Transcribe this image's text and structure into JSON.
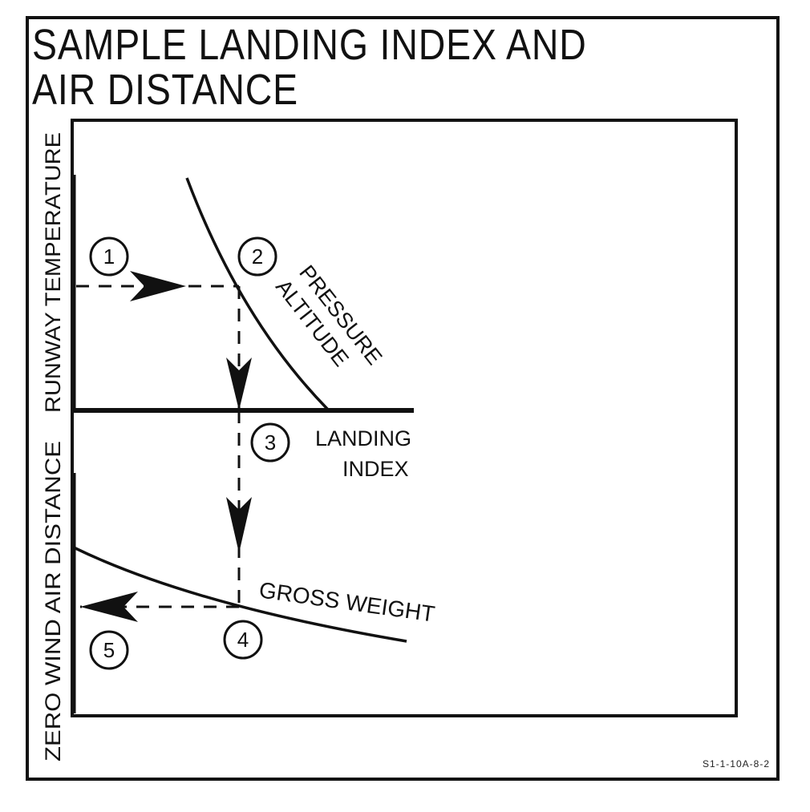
{
  "title": {
    "line1": "SAMPLE LANDING INDEX AND",
    "line2": "AIR DISTANCE"
  },
  "axes": {
    "upper_y_label": "RUNWAY TEMPERATURE",
    "lower_y_label": "ZERO WIND AIR DISTANCE"
  },
  "curves": {
    "pressure_altitude": "PRESSURE ALTITUDE",
    "pressure_altitude_line1": "PRESSURE",
    "pressure_altitude_line2": "ALTITUDE",
    "landing_index_line1": "LANDING",
    "landing_index_line2": "INDEX",
    "gross_weight": "GROSS WEIGHT"
  },
  "steps": [
    "1",
    "2",
    "3",
    "4",
    "5"
  ],
  "figure_id": "S1-1-10A-8-2",
  "colors": {
    "ink": "#111111",
    "background": "#ffffff"
  }
}
